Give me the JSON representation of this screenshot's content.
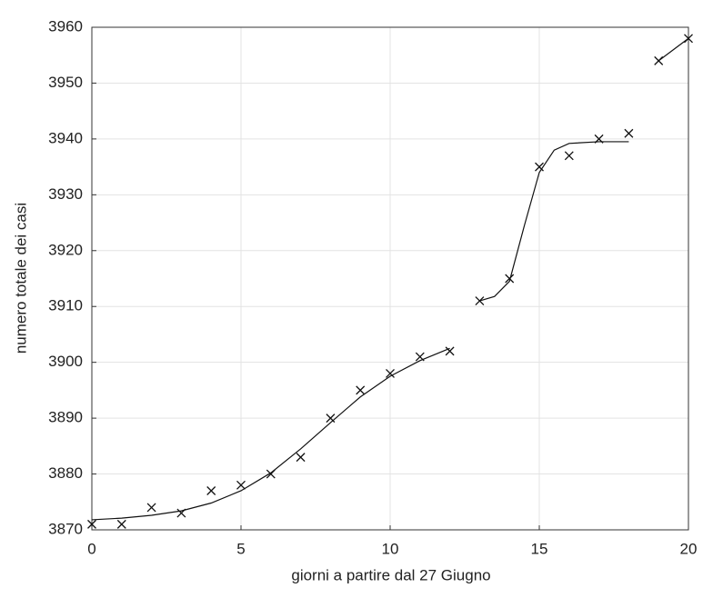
{
  "chart_data": {
    "type": "scatter",
    "xlabel": "giorni a partire dal 27 Giugno",
    "ylabel": "numero totale dei casi",
    "xlim": [
      0,
      20
    ],
    "ylim": [
      3870,
      3960
    ],
    "xticks": [
      0,
      5,
      10,
      15,
      20
    ],
    "yticks": [
      3870,
      3880,
      3890,
      3900,
      3910,
      3920,
      3930,
      3940,
      3950,
      3960
    ],
    "grid": true,
    "series": [
      {
        "style": "marker",
        "color": "#111111",
        "x": [
          0,
          1,
          2,
          3,
          4,
          5,
          6,
          7,
          8,
          9,
          10,
          11,
          12,
          13,
          14,
          15,
          16,
          17,
          18,
          19,
          20
        ],
        "values": [
          3871,
          3871,
          3874,
          3873,
          3877,
          3878,
          3880,
          3883,
          3890,
          3895,
          3898,
          3901,
          3902,
          3911,
          3915,
          3935,
          3937,
          3940,
          3941,
          3954,
          3958
        ]
      },
      {
        "style": "line",
        "color": "#111111",
        "x": [
          0,
          1,
          2,
          3,
          4,
          5,
          6,
          7,
          8,
          9,
          10,
          11,
          12
        ],
        "values": [
          3871.8,
          3872.1,
          3872.6,
          3873.4,
          3874.8,
          3877,
          3880.2,
          3884.5,
          3889.2,
          3893.8,
          3897.5,
          3900.3,
          3902.5
        ]
      },
      {
        "style": "line",
        "color": "#111111",
        "x": [
          13,
          13.5,
          14,
          14.5,
          15,
          15.5,
          16,
          17,
          18
        ],
        "values": [
          3911,
          3911.8,
          3914.5,
          3924.5,
          3934,
          3938,
          3939.2,
          3939.5,
          3939.5
        ]
      },
      {
        "style": "line",
        "color": "#111111",
        "x": [
          19,
          20
        ],
        "values": [
          3954,
          3958
        ]
      }
    ]
  }
}
